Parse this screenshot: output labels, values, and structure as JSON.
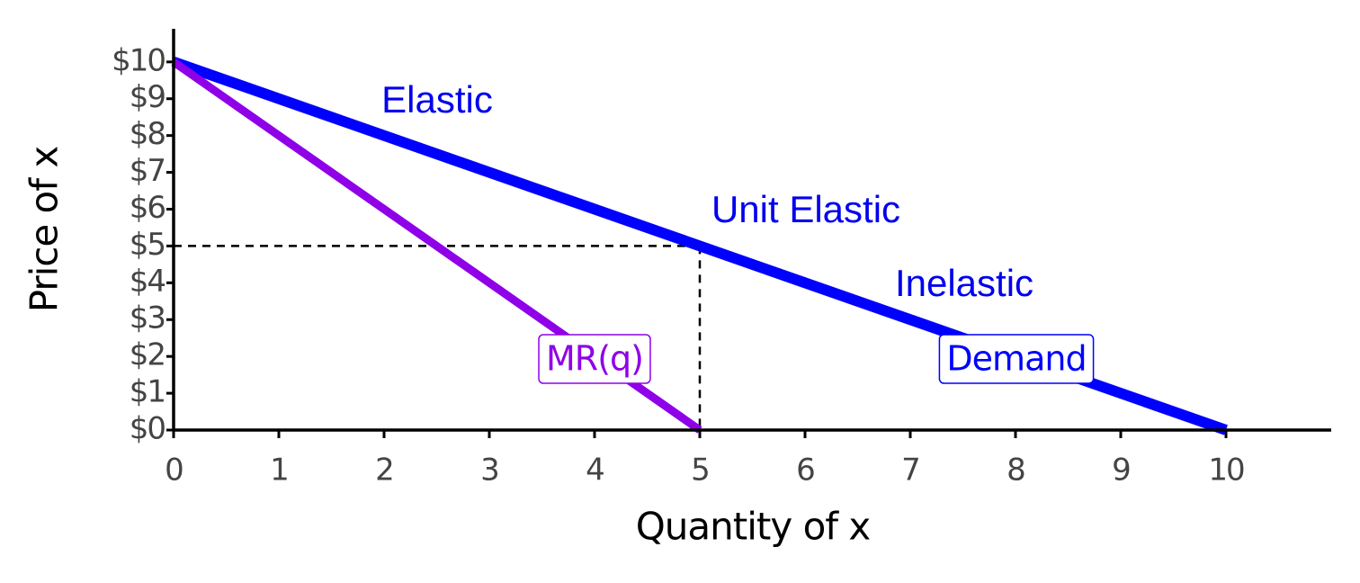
{
  "chart_data": {
    "type": "line",
    "xlabel": "Quantity of x",
    "ylabel": "Price of x",
    "series": [
      {
        "name": "Demand",
        "color": "#0000ff",
        "x": [
          0,
          10
        ],
        "values": [
          10,
          0
        ]
      },
      {
        "name": "MR(q)",
        "color": "#8f00e8",
        "x": [
          0,
          5
        ],
        "values": [
          10,
          0
        ]
      }
    ],
    "annotations": [
      "Elastic",
      "Unit Elastic",
      "Inelastic"
    ],
    "reference_point": {
      "x": 5,
      "y": 5
    },
    "xlim": [
      0,
      11
    ],
    "ylim": [
      0,
      10.9
    ],
    "xticks": [
      0,
      1,
      2,
      3,
      4,
      5,
      6,
      7,
      8,
      9,
      10
    ],
    "yticks": [
      {
        "value": 0,
        "label": "$0"
      },
      {
        "value": 1,
        "label": "$1"
      },
      {
        "value": 2,
        "label": "$2"
      },
      {
        "value": 3,
        "label": "$3"
      },
      {
        "value": 4,
        "label": "$4"
      },
      {
        "value": 5,
        "label": "$5"
      },
      {
        "value": 6,
        "label": "$6"
      },
      {
        "value": 7,
        "label": "$7"
      },
      {
        "value": 8,
        "label": "$8"
      },
      {
        "value": 9,
        "label": "$9"
      },
      {
        "value": 10,
        "label": "$10"
      }
    ]
  }
}
